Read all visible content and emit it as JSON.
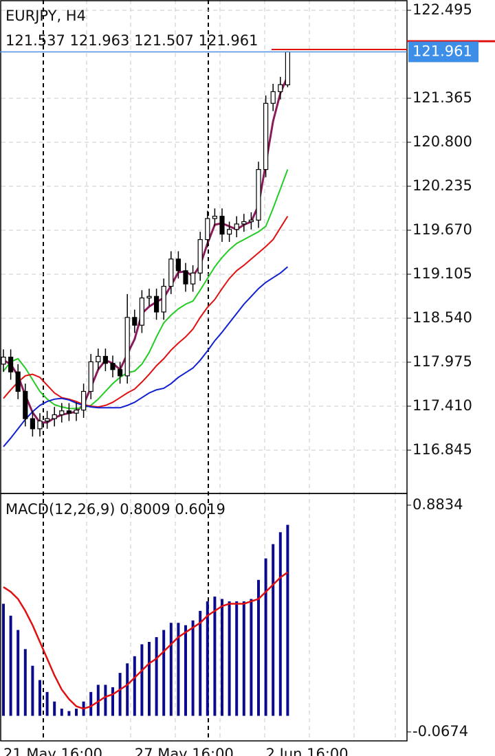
{
  "chart_data": [
    {
      "type": "candlestick",
      "title": "EURJPY, H4",
      "categories": [
        "21 May 16:00",
        null,
        null,
        null,
        null,
        null,
        null,
        null,
        null,
        null,
        null,
        null,
        null,
        null,
        null,
        null,
        null,
        null,
        "27 May 16:00",
        null,
        null,
        null,
        null,
        null,
        null,
        null,
        null,
        null,
        null,
        null,
        null,
        null,
        null,
        null,
        null,
        null,
        "2 Jun 16:00",
        null,
        null,
        null
      ],
      "open": [
        117.95,
        118.04,
        117.85,
        117.6,
        117.25,
        117.12,
        117.22,
        117.25,
        117.3,
        117.35,
        117.32,
        117.36,
        117.6,
        117.98,
        118.05,
        117.96,
        117.88,
        117.8,
        118.55,
        118.45,
        118.8,
        118.82,
        118.62,
        118.95,
        119.3,
        119.15,
        118.98,
        119.12,
        119.55,
        119.82,
        119.85,
        119.62,
        119.68,
        119.75,
        119.78,
        119.8,
        120.45,
        121.3,
        121.45,
        121.537
      ],
      "high": [
        118.14,
        118.14,
        117.95,
        117.7,
        117.35,
        117.32,
        117.35,
        117.4,
        117.45,
        117.45,
        117.46,
        117.7,
        118.08,
        118.15,
        118.15,
        118.06,
        117.98,
        118.85,
        118.65,
        118.9,
        118.92,
        118.92,
        119.05,
        119.4,
        119.4,
        119.25,
        119.22,
        119.65,
        119.92,
        119.95,
        119.95,
        119.78,
        119.85,
        119.88,
        119.9,
        120.55,
        121.4,
        121.55,
        121.64,
        121.963
      ],
      "low": [
        117.85,
        117.75,
        117.5,
        117.15,
        117.02,
        117.02,
        117.12,
        117.15,
        117.2,
        117.22,
        117.22,
        117.26,
        117.5,
        117.88,
        117.86,
        117.78,
        117.7,
        117.7,
        118.35,
        118.35,
        118.7,
        118.52,
        118.52,
        118.85,
        119.05,
        118.88,
        118.88,
        119.02,
        119.45,
        119.72,
        119.52,
        119.52,
        119.58,
        119.65,
        119.68,
        119.7,
        120.35,
        121.2,
        121.35,
        121.507
      ],
      "close": [
        118.04,
        117.85,
        117.6,
        117.25,
        117.12,
        117.22,
        117.25,
        117.3,
        117.35,
        117.32,
        117.36,
        117.6,
        117.98,
        118.05,
        117.96,
        117.88,
        117.8,
        118.55,
        118.45,
        118.8,
        118.82,
        118.62,
        118.95,
        119.3,
        119.15,
        118.98,
        119.12,
        119.55,
        119.82,
        119.85,
        119.62,
        119.68,
        119.75,
        119.78,
        119.8,
        120.45,
        121.3,
        121.45,
        121.54,
        121.961
      ],
      "series": [
        {
          "color": "#8b1a5a",
          "values": [
            118.0,
            117.95,
            117.8,
            117.55,
            117.33,
            117.2,
            117.2,
            117.26,
            117.3,
            117.32,
            117.34,
            117.43,
            117.65,
            117.88,
            118.0,
            117.96,
            117.88,
            118.08,
            118.27,
            118.6,
            118.69,
            118.75,
            118.8,
            118.96,
            119.13,
            119.14,
            119.08,
            119.22,
            119.5,
            119.74,
            119.76,
            119.72,
            119.68,
            119.74,
            119.78,
            119.99,
            120.52,
            121.07,
            121.43,
            121.65
          ]
        },
        {
          "color": "#22cc22",
          "values": [
            117.86,
            117.98,
            118.02,
            117.9,
            117.75,
            117.6,
            117.5,
            117.43,
            117.4,
            117.38,
            117.38,
            117.39,
            117.42,
            117.5,
            117.6,
            117.7,
            117.78,
            117.84,
            117.86,
            117.95,
            118.1,
            118.3,
            118.48,
            118.58,
            118.66,
            118.72,
            118.76,
            118.9,
            119.05,
            119.2,
            119.32,
            119.42,
            119.5,
            119.55,
            119.6,
            119.65,
            119.72,
            119.95,
            120.2,
            120.45
          ]
        },
        {
          "color": "#e01010",
          "values": [
            117.51,
            117.62,
            117.72,
            117.8,
            117.82,
            117.78,
            117.68,
            117.58,
            117.52,
            117.5,
            117.47,
            117.43,
            117.41,
            117.4,
            117.42,
            117.46,
            117.52,
            117.58,
            117.63,
            117.72,
            117.82,
            117.93,
            118.02,
            118.13,
            118.22,
            118.3,
            118.4,
            118.55,
            118.68,
            118.78,
            118.92,
            119.05,
            119.15,
            119.22,
            119.3,
            119.38,
            119.46,
            119.55,
            119.7,
            119.85
          ]
        },
        {
          "color": "#1020d0",
          "values": [
            116.89,
            117.0,
            117.12,
            117.24,
            117.34,
            117.42,
            117.47,
            117.5,
            117.51,
            117.49,
            117.45,
            117.42,
            117.4,
            117.39,
            117.39,
            117.39,
            117.39,
            117.42,
            117.46,
            117.52,
            117.58,
            117.62,
            117.64,
            117.7,
            117.78,
            117.84,
            117.9,
            118.0,
            118.12,
            118.25,
            118.36,
            118.48,
            118.6,
            118.72,
            118.82,
            118.92,
            119.0,
            119.06,
            119.12,
            119.2
          ]
        }
      ],
      "ylim": [
        116.289,
        122.627
      ],
      "yticks": [
        122.495,
        121.365,
        {
          "value": 120.8,
          "label": "120.800"
        },
        120.235,
        {
          "value": 119.67,
          "label": "119.670"
        },
        119.105,
        {
          "value": 118.54,
          "label": "118.540"
        },
        117.975,
        {
          "value": 117.41,
          "label": "117.410"
        },
        116.845
      ],
      "grid": true
    },
    {
      "type": "macd",
      "title": "MACD(12,26,9)",
      "series": [
        {
          "type": "bar",
          "color": "#0a0a8c",
          "values": [
            0.47,
            0.42,
            0.36,
            0.28,
            0.21,
            0.15,
            0.1,
            0.06,
            0.03,
            0.02,
            0.03,
            0.06,
            0.1,
            0.13,
            0.13,
            0.12,
            0.18,
            0.22,
            0.25,
            0.3,
            0.31,
            0.33,
            0.36,
            0.39,
            0.39,
            0.38,
            0.4,
            0.44,
            0.48,
            0.5,
            0.49,
            0.48,
            0.48,
            0.48,
            0.49,
            0.57,
            0.66,
            0.72,
            0.77,
            0.8009
          ]
        },
        {
          "type": "line",
          "color": "#e01010",
          "values": [
            0.54,
            0.52,
            0.49,
            0.44,
            0.38,
            0.31,
            0.24,
            0.17,
            0.11,
            0.07,
            0.04,
            0.03,
            0.04,
            0.06,
            0.08,
            0.09,
            0.11,
            0.13,
            0.16,
            0.19,
            0.22,
            0.24,
            0.27,
            0.3,
            0.33,
            0.35,
            0.37,
            0.39,
            0.42,
            0.44,
            0.46,
            0.47,
            0.47,
            0.47,
            0.48,
            0.49,
            0.52,
            0.55,
            0.58,
            0.6019
          ]
        }
      ],
      "ylim": [
        -0.105,
        0.9324
      ],
      "yticks": [
        0.8834,
        -0.0674
      ]
    }
  ]
}
